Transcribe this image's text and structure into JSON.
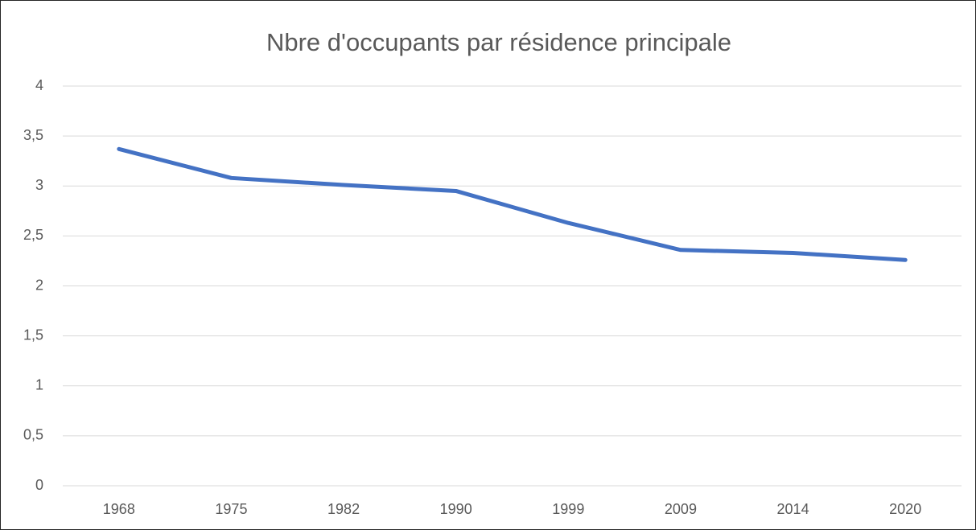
{
  "chart_data": {
    "type": "line",
    "title": "Nbre d'occupants par résidence principale",
    "categories": [
      "1968",
      "1975",
      "1982",
      "1990",
      "1999",
      "2009",
      "2014",
      "2020"
    ],
    "series": [
      {
        "name": "Nbre d'occupants",
        "color": "#4472c4",
        "values": [
          3.37,
          3.08,
          3.01,
          2.95,
          2.63,
          2.36,
          2.33,
          2.26
        ]
      }
    ],
    "ylim": [
      0,
      4
    ],
    "yticks": [
      0,
      {
        "value": 0.5,
        "label": "0,5"
      },
      1,
      {
        "value": 1.5,
        "label": "1,5"
      },
      2,
      {
        "value": 2.5,
        "label": "2,5"
      },
      3,
      {
        "value": 3.5,
        "label": "3,5"
      },
      4
    ],
    "grid": true
  }
}
